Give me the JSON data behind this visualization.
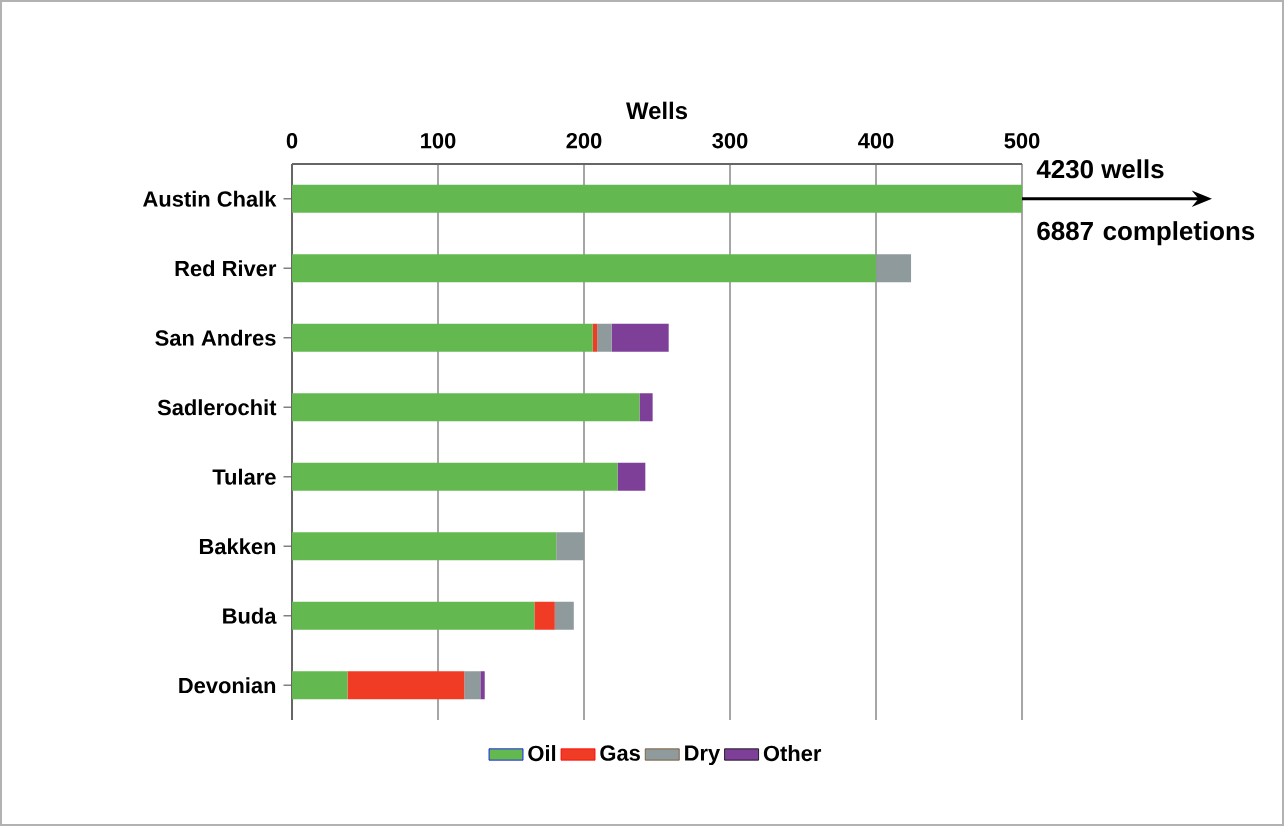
{
  "chart_data": {
    "type": "bar",
    "orientation": "horizontal",
    "stacked": true,
    "xlabel": "Wells",
    "categories": [
      "Austin Chalk",
      "Red River",
      "San Andres",
      "Sadlerochit",
      "Tulare",
      "Bakken",
      "Buda",
      "Devonian"
    ],
    "series": [
      {
        "name": "Oil",
        "color": "#63b84f",
        "values": [
          500,
          400,
          206,
          238,
          223,
          181,
          166,
          38
        ]
      },
      {
        "name": "Gas",
        "color": "#f03c25",
        "values": [
          0,
          0,
          3,
          0,
          0,
          0,
          14,
          80
        ]
      },
      {
        "name": "Dry",
        "color": "#8e9a9c",
        "values": [
          0,
          24,
          10,
          0,
          0,
          19,
          13,
          11
        ]
      },
      {
        "name": "Other",
        "color": "#7e3f98",
        "values": [
          0,
          0,
          39,
          9,
          19,
          0,
          0,
          3
        ]
      }
    ],
    "xlim": [
      0,
      500
    ],
    "xticks": [
      0,
      100,
      200,
      300,
      400,
      500
    ],
    "grid": "x",
    "legend": "bottom",
    "annotations": [
      "4230 wells",
      "6887 completions"
    ]
  }
}
